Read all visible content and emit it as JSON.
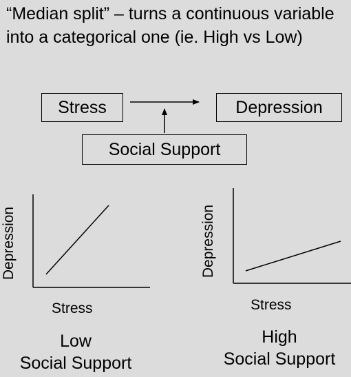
{
  "intro_text": "“Median split” – turns a continuous variable into a categorical one (ie. High vs Low)",
  "diagram": {
    "stress_label": "Stress",
    "depression_label": "Depression",
    "support_label": "Social Support"
  },
  "left_chart": {
    "ylabel": "Depression",
    "xlabel": "Stress",
    "condition_line1": "Low",
    "condition_line2": "Social Support"
  },
  "right_chart": {
    "ylabel": "Depression",
    "xlabel": "Stress",
    "condition_line1": "High",
    "condition_line2": "Social Support"
  }
}
